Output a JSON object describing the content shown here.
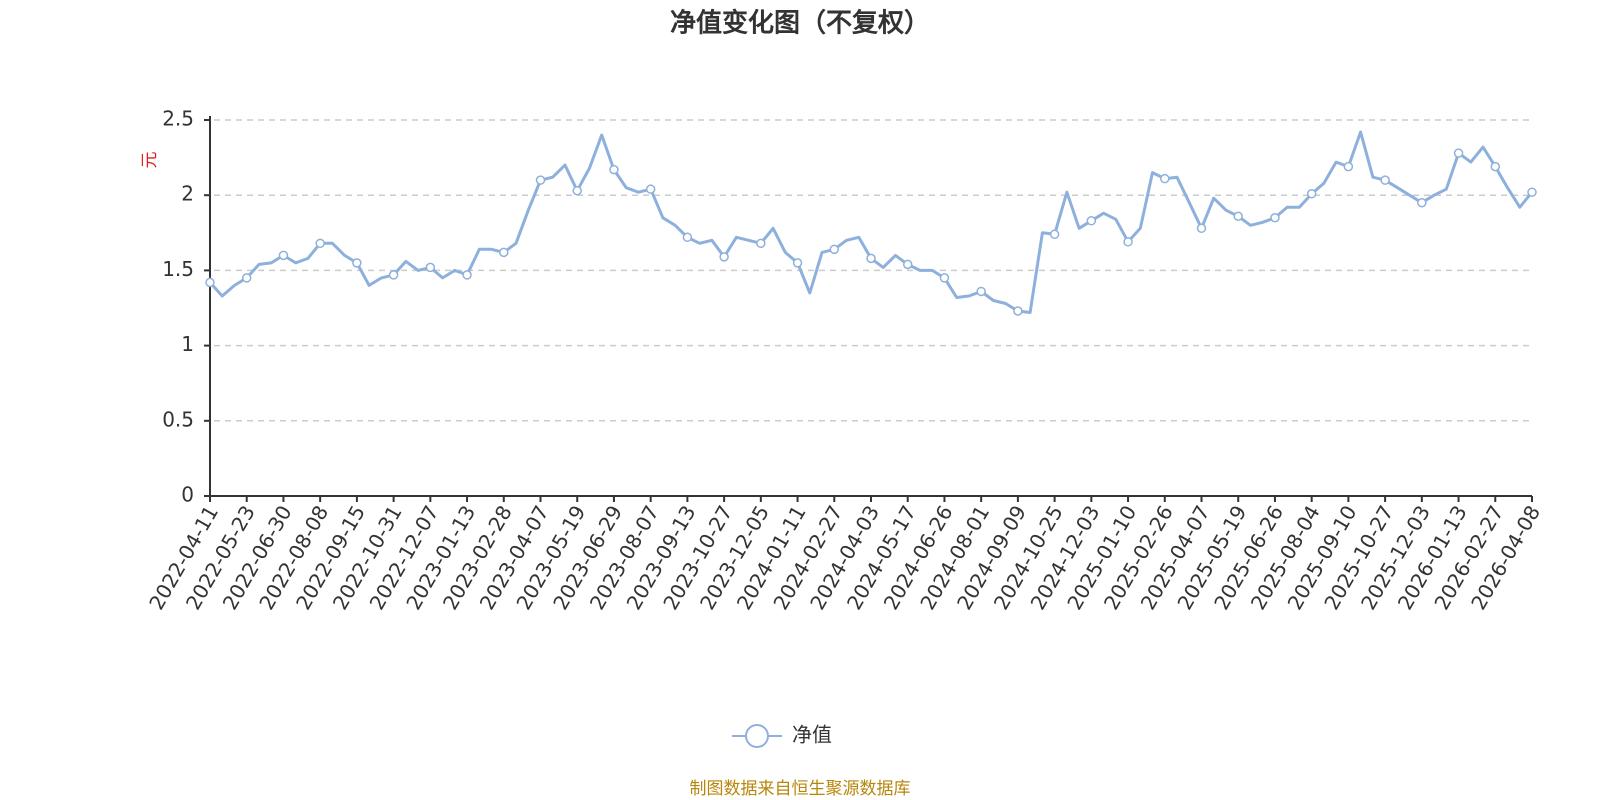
{
  "chart_data": {
    "type": "line",
    "title": "净值变化图（不复权）",
    "y_label": "元",
    "source": "制图数据来自恒生聚源数据库",
    "categories": [
      "2022-04-11",
      null,
      null,
      "2022-05-23",
      null,
      null,
      "2022-06-30",
      null,
      null,
      "2022-08-08",
      null,
      null,
      "2022-09-15",
      null,
      null,
      "2022-10-31",
      null,
      null,
      "2022-12-07",
      null,
      null,
      "2023-01-13",
      null,
      null,
      "2023-02-28",
      null,
      null,
      "2023-04-07",
      null,
      null,
      "2023-05-19",
      null,
      null,
      "2023-06-29",
      null,
      null,
      "2023-08-07",
      null,
      null,
      "2023-09-13",
      null,
      null,
      "2023-10-27",
      null,
      null,
      "2023-12-05",
      null,
      null,
      "2024-01-11",
      null,
      null,
      "2024-02-27",
      null,
      null,
      "2024-04-03",
      null,
      null,
      "2024-05-17",
      null,
      null,
      "2024-06-26",
      null,
      null,
      "2024-08-01",
      null,
      null,
      "2024-09-09",
      null,
      null,
      "2024-10-25",
      null,
      null,
      "2024-12-03",
      null,
      null,
      "2025-01-10",
      null,
      null,
      "2025-02-26",
      null,
      null,
      "2025-04-07",
      null,
      null,
      "2025-05-19",
      null,
      null,
      "2025-06-26",
      null,
      null,
      "2025-08-04",
      null,
      null,
      "2025-09-10",
      null,
      null,
      "2025-10-27",
      null,
      null,
      "2025-12-03",
      null,
      null,
      "2026-01-13",
      null,
      null,
      "2026-02-27",
      null,
      null,
      "2026-04-08"
    ],
    "series": [
      {
        "name": "净值",
        "color": "#8eb0dc",
        "values": [
          1.42,
          1.33,
          1.4,
          1.45,
          1.54,
          1.55,
          1.6,
          1.55,
          1.58,
          1.68,
          1.68,
          1.6,
          1.55,
          1.4,
          1.45,
          1.47,
          1.56,
          1.5,
          1.52,
          1.45,
          1.5,
          1.47,
          1.64,
          1.64,
          1.62,
          1.68,
          1.9,
          2.1,
          2.12,
          2.2,
          2.03,
          2.18,
          2.4,
          2.17,
          2.05,
          2.02,
          2.04,
          1.85,
          1.8,
          1.72,
          1.68,
          1.7,
          1.59,
          1.72,
          1.7,
          1.68,
          1.78,
          1.62,
          1.55,
          1.35,
          1.62,
          1.64,
          1.7,
          1.72,
          1.58,
          1.52,
          1.6,
          1.54,
          1.5,
          1.5,
          1.45,
          1.32,
          1.33,
          1.36,
          1.3,
          1.28,
          1.23,
          1.22,
          1.75,
          1.74,
          2.02,
          1.78,
          1.83,
          1.88,
          1.84,
          1.69,
          1.78,
          2.15,
          2.11,
          2.12,
          1.95,
          1.78,
          1.98,
          1.9,
          1.86,
          1.8,
          1.82,
          1.85,
          1.92,
          1.92,
          2.01,
          2.08,
          2.22,
          2.19,
          2.42,
          2.12,
          2.1,
          2.05,
          2.0,
          1.95,
          2.0,
          2.04,
          2.28,
          2.22,
          2.32,
          2.19,
          2.05,
          1.92,
          2.02
        ]
      }
    ],
    "ylim": [
      0,
      2.5
    ],
    "yticks": [
      0,
      0.5,
      1,
      1.5,
      2,
      2.5
    ],
    "grid": true
  }
}
